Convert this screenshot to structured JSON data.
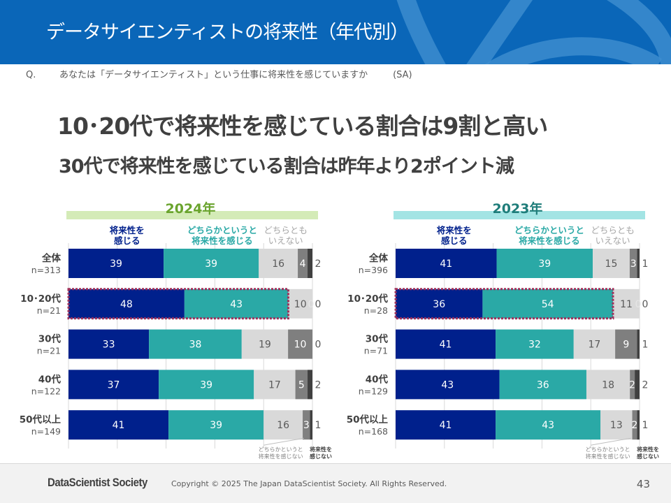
{
  "header": {
    "title": "データサイエンティストの将来性（年代別）"
  },
  "question": {
    "prefix": "Q.",
    "text": "あなたは「データサイエンティスト」という仕事に将来性を感じていますか",
    "type": "(SA)"
  },
  "headlines": [
    "10･20代で将来性を感じている割合は9割と高い",
    "30代で将来性を感じている割合は昨年より2ポイント減"
  ],
  "colors": {
    "header_bg": "#0a66b8",
    "feel_future": "#00208c",
    "somewhat_feel": "#2aa9a6",
    "neither": "#d9d9d9",
    "somewhat_not": "#7f7f7f",
    "not_feel": "#404040",
    "highlight_border": "#a0305a",
    "year_2024_band": "#d4ebb7",
    "year_2024_text": "#6aa42e",
    "year_2023_band": "#a3e4e4",
    "year_2023_text": "#1f7d7a"
  },
  "chart_data": [
    {
      "type": "bar",
      "orientation": "horizontal-stacked-100",
      "title": "2024年",
      "legend_top": [
        "将来性を\n感じる",
        "どちらかというと\n将来性を感じる",
        "どちらとも\nいえない"
      ],
      "legend_bottom": [
        "どちらかというと\n将来性を感じない",
        "将来性を\n感じない"
      ],
      "series_names": [
        "将来性を感じる",
        "どちらかというと将来性を感じる",
        "どちらともいえない",
        "どちらかというと将来性を感じない",
        "将来性を感じない"
      ],
      "categories": [
        {
          "label": "全体",
          "n": "n=313",
          "values": [
            39,
            39,
            16,
            4,
            2
          ],
          "highlight": false
        },
        {
          "label": "10･20代",
          "n": "n=21",
          "values": [
            48,
            43,
            10,
            0,
            0
          ],
          "highlight": true
        },
        {
          "label": "30代",
          "n": "n=21",
          "values": [
            33,
            38,
            19,
            10,
            0
          ],
          "highlight": false
        },
        {
          "label": "40代",
          "n": "n=122",
          "values": [
            37,
            39,
            17,
            5,
            2
          ],
          "highlight": false
        },
        {
          "label": "50代以上",
          "n": "n=149",
          "values": [
            41,
            39,
            16,
            3,
            1
          ],
          "highlight": false
        }
      ],
      "xlim": [
        0,
        100
      ],
      "grid": true
    },
    {
      "type": "bar",
      "orientation": "horizontal-stacked-100",
      "title": "2023年",
      "legend_top": [
        "将来性を\n感じる",
        "どちらかというと\n将来性を感じる",
        "どちらとも\nいえない"
      ],
      "legend_bottom": [
        "どちらかというと\n将来性を感じない",
        "将来性を\n感じない"
      ],
      "series_names": [
        "将来性を感じる",
        "どちらかというと将来性を感じる",
        "どちらともいえない",
        "どちらかというと将来性を感じない",
        "将来性を感じない"
      ],
      "categories": [
        {
          "label": "全体",
          "n": "n=396",
          "values": [
            41,
            39,
            15,
            3,
            1
          ],
          "highlight": false
        },
        {
          "label": "10･20代",
          "n": "n=28",
          "values": [
            36,
            54,
            11,
            0,
            0
          ],
          "highlight": true
        },
        {
          "label": "30代",
          "n": "n=71",
          "values": [
            41,
            32,
            17,
            9,
            1
          ],
          "highlight": false
        },
        {
          "label": "40代",
          "n": "n=129",
          "values": [
            43,
            36,
            18,
            2,
            2
          ],
          "highlight": false
        },
        {
          "label": "50代以上",
          "n": "n=168",
          "values": [
            41,
            43,
            13,
            2,
            1
          ],
          "highlight": false
        }
      ],
      "xlim": [
        0,
        100
      ],
      "grid": true
    }
  ],
  "footer": {
    "brand": "DataScientist Society",
    "copyright": "Copyright © 2025  The Japan DataScientist Society. All Rights Reserved.",
    "page": "43"
  }
}
